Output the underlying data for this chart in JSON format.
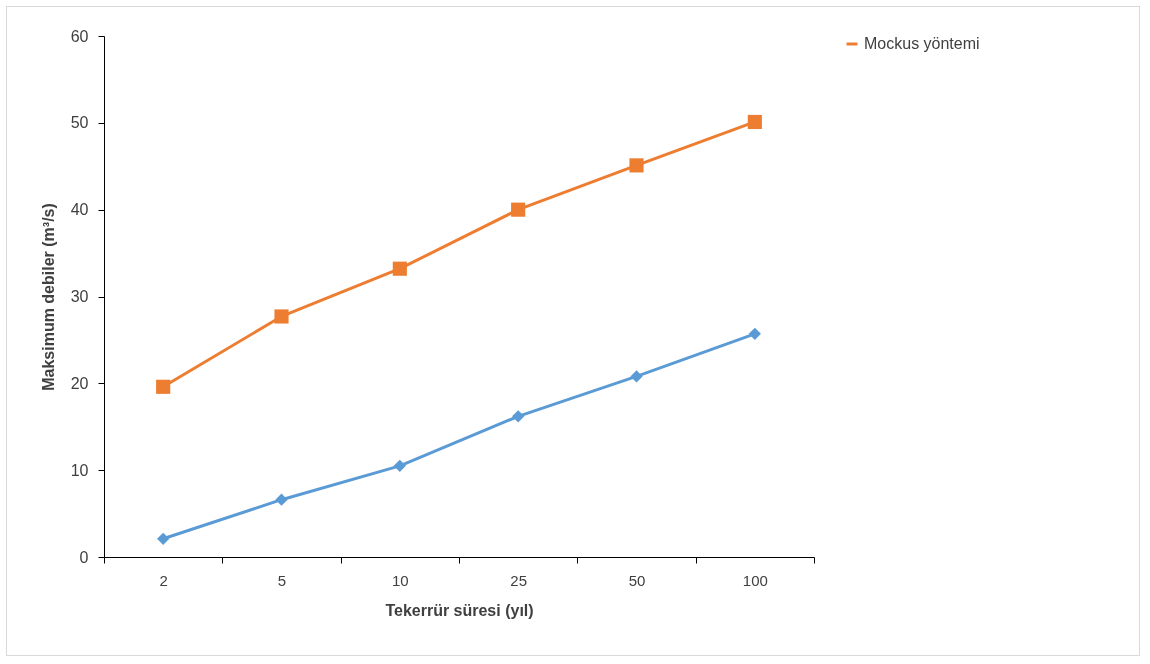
{
  "chart_data": {
    "type": "line",
    "xlabel": "Tekerrür süresi (yıl)",
    "ylabel": "Maksimum debiler (m³/s)",
    "categories": [
      "2",
      "5",
      "10",
      "25",
      "50",
      "100"
    ],
    "series": [
      {
        "color": "#5b9bd5",
        "marker": "diamond",
        "values": [
          2.1,
          6.6,
          10.5,
          16.2,
          20.8,
          25.7
        ]
      },
      {
        "name": "Mockus yöntemi",
        "color": "#ed7d31",
        "marker": "square",
        "values": [
          19.6,
          27.7,
          33.2,
          40.0,
          45.1,
          50.1
        ]
      }
    ],
    "ylim": [
      0,
      60
    ],
    "yticks": [
      0,
      10,
      20,
      30,
      40,
      50,
      60
    ],
    "grid": false,
    "legend": "right",
    "line_style": "solid"
  }
}
